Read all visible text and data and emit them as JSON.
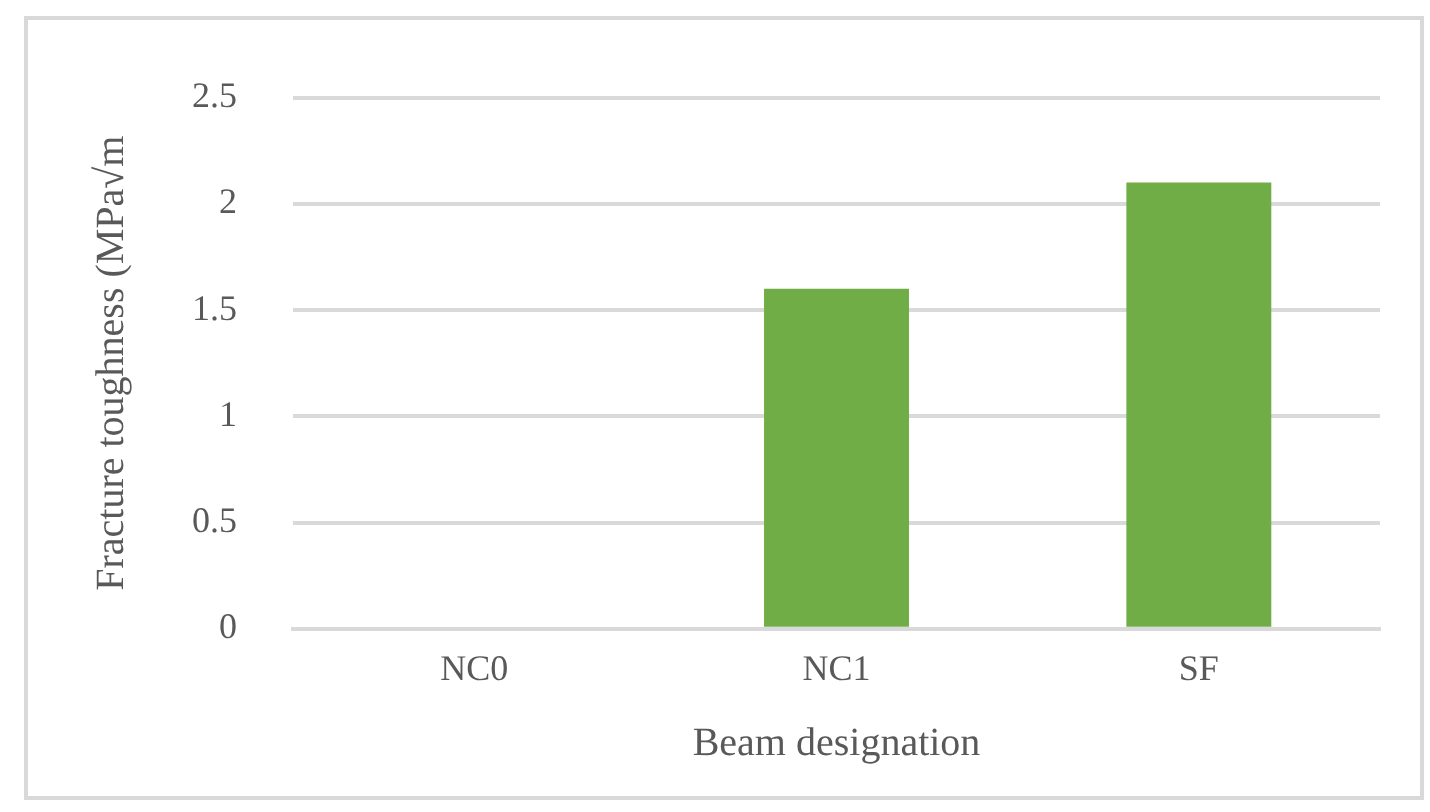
{
  "chart_data": {
    "type": "bar",
    "xlabel": "Beam designation",
    "ylabel": "Fracture toughness (MPa√m",
    "categories": [
      "NC0",
      "NC1",
      "SF"
    ],
    "values": [
      0,
      1.6,
      2.1
    ],
    "color": "#70ad47",
    "ylim": [
      0,
      2.5
    ],
    "yticks": [
      0,
      0.5,
      1,
      1.5,
      2,
      2.5
    ],
    "grid": "y"
  }
}
